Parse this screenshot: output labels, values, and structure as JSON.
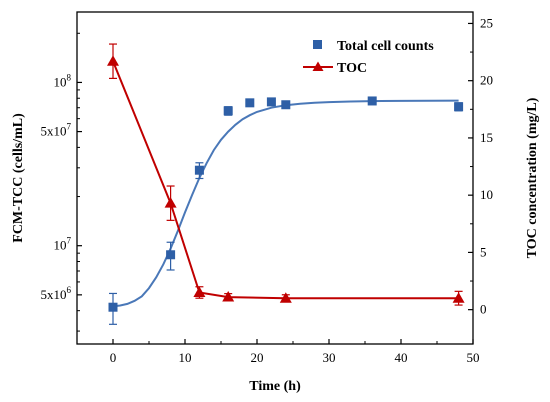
{
  "chart_data": {
    "type": "scatter",
    "title": "",
    "xlabel": "Time (h)",
    "ylabel_left": "FCM-TCC (cells/mL)",
    "ylabel_right": "TOC concentration (mg/L)",
    "xlim": [
      -5,
      50
    ],
    "x_ticks": [
      0,
      10,
      20,
      30,
      40,
      50
    ],
    "x_tick_labels": [
      "0",
      "10",
      "20",
      "30",
      "40",
      "50"
    ],
    "ylim_left": [
      2500000,
      270000000
    ],
    "y_left_scale": "log",
    "y_left_ticks": [
      5000000,
      10000000,
      50000000,
      100000000
    ],
    "y_left_tick_base": [
      "5x10",
      "10",
      "5x10",
      "10"
    ],
    "y_left_tick_exp": [
      "6",
      "7",
      "7",
      "8"
    ],
    "ylim_right": [
      -3,
      26
    ],
    "y_right_ticks": [
      0,
      5,
      10,
      15,
      20,
      25
    ],
    "y_right_tick_labels": [
      "0",
      "5",
      "10",
      "15",
      "20",
      "25"
    ],
    "grid": false,
    "legend_position": "top-right",
    "colors": {
      "tcc": "#2e5fa6",
      "tcc_fit": "#4a78b8",
      "toc": "#c00000",
      "axis": "#000000"
    },
    "series": [
      {
        "name": "Total cell counts",
        "axis": "left",
        "marker": "square",
        "x": [
          0,
          8,
          12,
          16,
          19,
          22,
          24,
          36,
          48
        ],
        "values": [
          4200000,
          8800000,
          29000000,
          67000000,
          75000000,
          76000000,
          73000000,
          77000000,
          71000000
        ],
        "error": [
          900000,
          1700000,
          3200000,
          4000000,
          3000000,
          3000000,
          3000000,
          2500000,
          4000000
        ],
        "fit": {
          "model": "logistic",
          "x": [
            0,
            1,
            2,
            3,
            4,
            5,
            6,
            7,
            8,
            9,
            10,
            11,
            12,
            13,
            14,
            15,
            16,
            17,
            18,
            19,
            20,
            22,
            24,
            26,
            28,
            30,
            33,
            36,
            40,
            44,
            48
          ],
          "values": [
            4250000,
            4300000,
            4400000,
            4600000,
            4900000,
            5500000,
            6400000,
            7700000,
            9600000,
            12300000,
            16000000,
            20500000,
            26000000,
            32000000,
            38500000,
            44500000,
            50000000,
            55000000,
            59500000,
            63000000,
            66000000,
            70000000,
            72500000,
            74000000,
            75000000,
            75800000,
            76400000,
            76800000,
            77100000,
            77300000,
            77400000
          ]
        }
      },
      {
        "name": "TOC",
        "axis": "right",
        "marker": "triangle",
        "x": [
          0,
          8,
          12,
          16,
          24,
          48
        ],
        "values": [
          21.7,
          9.3,
          1.5,
          1.1,
          1.0,
          1.0
        ],
        "error": [
          1.5,
          1.5,
          0.5,
          0.3,
          0.3,
          0.6
        ]
      }
    ]
  }
}
